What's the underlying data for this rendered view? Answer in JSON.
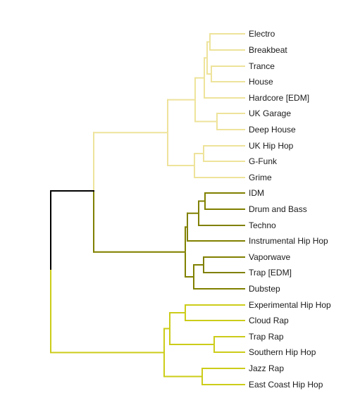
{
  "colors": {
    "background": "#ffffff",
    "root": "#000000",
    "cluster_light": "#eee39b",
    "cluster_olive": "#808000",
    "cluster_yellow": "#cccc1a",
    "label_text": "#1a1a1a"
  },
  "leaves": [
    {
      "label": "Electro",
      "cluster": "cluster_light"
    },
    {
      "label": "Breakbeat",
      "cluster": "cluster_light"
    },
    {
      "label": "Trance",
      "cluster": "cluster_light"
    },
    {
      "label": "House",
      "cluster": "cluster_light"
    },
    {
      "label": "Hardcore [EDM]",
      "cluster": "cluster_light"
    },
    {
      "label": "UK Garage",
      "cluster": "cluster_light"
    },
    {
      "label": "Deep House",
      "cluster": "cluster_light"
    },
    {
      "label": "UK Hip Hop",
      "cluster": "cluster_light"
    },
    {
      "label": "G-Funk",
      "cluster": "cluster_light"
    },
    {
      "label": "Grime",
      "cluster": "cluster_light"
    },
    {
      "label": "IDM",
      "cluster": "cluster_olive"
    },
    {
      "label": "Drum and Bass",
      "cluster": "cluster_olive"
    },
    {
      "label": "Techno",
      "cluster": "cluster_olive"
    },
    {
      "label": "Instrumental Hip Hop",
      "cluster": "cluster_olive"
    },
    {
      "label": "Vaporwave",
      "cluster": "cluster_olive"
    },
    {
      "label": "Trap [EDM]",
      "cluster": "cluster_olive"
    },
    {
      "label": "Dubstep",
      "cluster": "cluster_olive"
    },
    {
      "label": "Experimental Hip Hop",
      "cluster": "cluster_yellow"
    },
    {
      "label": "Cloud Rap",
      "cluster": "cluster_yellow"
    },
    {
      "label": "Trap Rap",
      "cluster": "cluster_yellow"
    },
    {
      "label": "Southern Hip Hop",
      "cluster": "cluster_yellow"
    },
    {
      "label": "Jazz Rap",
      "cluster": "cluster_yellow"
    },
    {
      "label": "East Coast Hip Hop",
      "cluster": "cluster_yellow"
    }
  ]
}
